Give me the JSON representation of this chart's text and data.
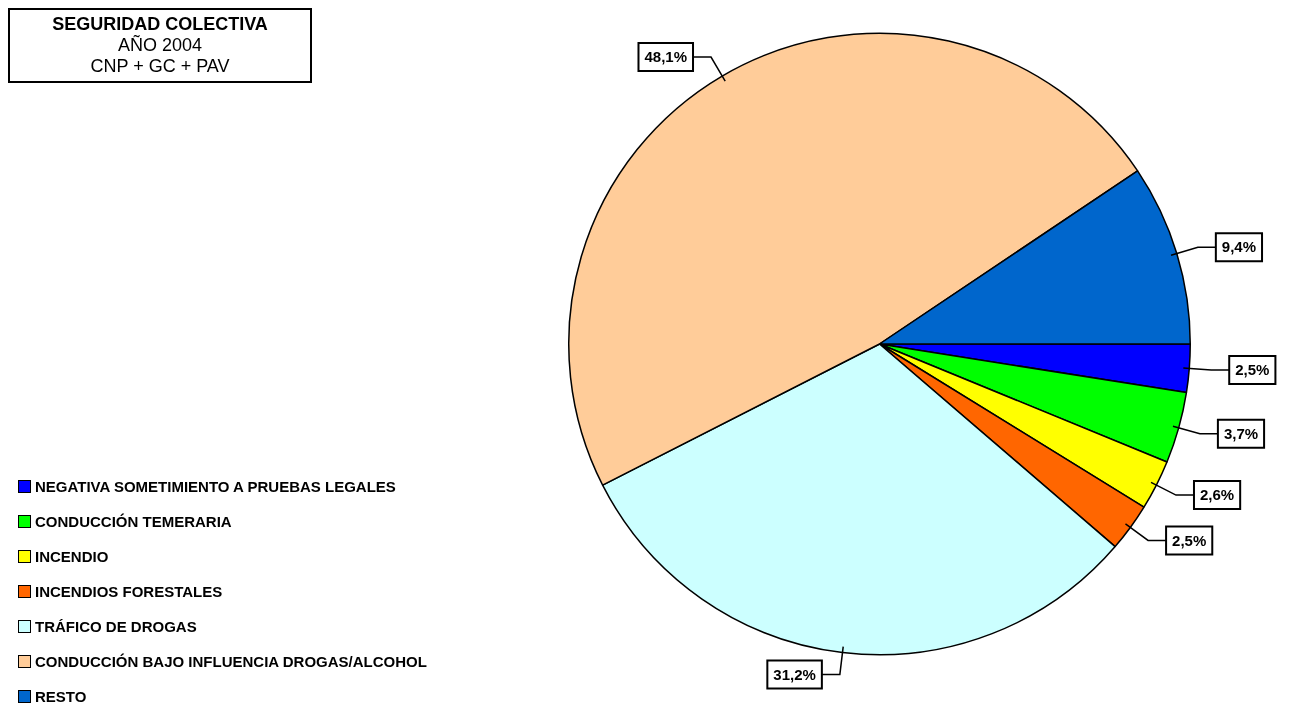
{
  "chart_data": {
    "type": "pie",
    "title": "SEGURIDAD COLECTIVA",
    "subtitle": "AÑO 2004",
    "annotations": [
      "CNP + GC + PAV"
    ],
    "categories": [
      "NEGATIVA SOMETIMIENTO A PRUEBAS LEGALES",
      "CONDUCCIÓN TEMERARIA",
      "INCENDIO",
      "INCENDIOS FORESTALES",
      "TRÁFICO DE DROGAS",
      "CONDUCCIÓN BAJO INFLUENCIA DROGAS/ALCOHOL",
      "RESTO"
    ],
    "values": [
      2.5,
      3.7,
      2.6,
      2.5,
      31.2,
      48.1,
      9.4
    ],
    "colors": [
      "#0000ff",
      "#00ff00",
      "#ffff00",
      "#ff6600",
      "#ccffff",
      "#ffcc99",
      "#0066cc"
    ],
    "value_labels": [
      "2,5%",
      "3,7%",
      "2,6%",
      "2,5%",
      "31,2%",
      "48,1%",
      "9,4%"
    ],
    "legend": "bottom left"
  }
}
